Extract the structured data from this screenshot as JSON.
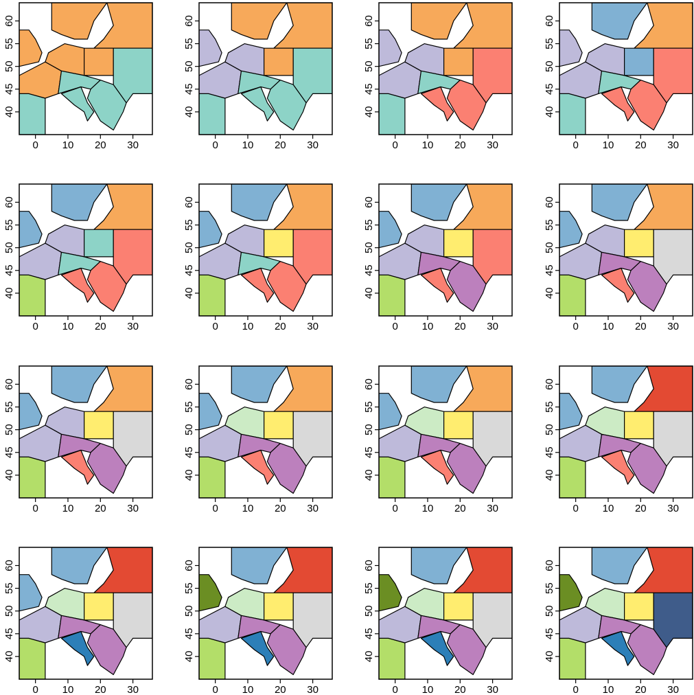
{
  "axes": {
    "xlim": [
      -5,
      36
    ],
    "ylim": [
      35,
      64
    ],
    "xticks": [
      0,
      10,
      20,
      30
    ],
    "yticks": [
      40,
      45,
      50,
      55,
      60
    ]
  }
}
